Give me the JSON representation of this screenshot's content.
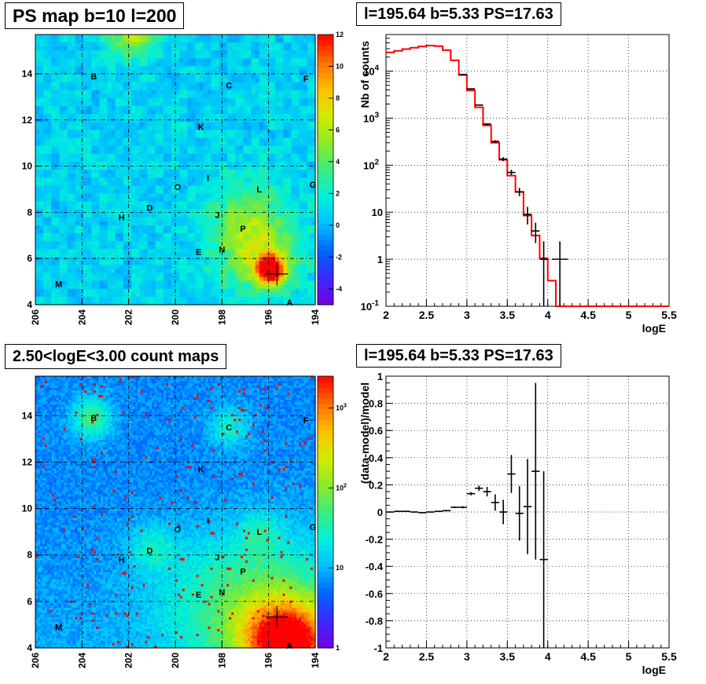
{
  "panels": [
    {
      "title": "PS map b=10 l=200"
    },
    {
      "title": "l=195.64 b=5.33 PS=17.63"
    },
    {
      "title": "2.50<logE<3.00 count maps"
    },
    {
      "title": "l=195.64 b=5.33 PS=17.63"
    }
  ],
  "chart_data": [
    {
      "type": "heatmap",
      "title": "PS map b=10 l=200",
      "xlim": [
        206,
        194
      ],
      "ylim": [
        4,
        15.7
      ],
      "x_ticks": [
        "206",
        "204",
        "202",
        "200",
        "198",
        "196",
        "194"
      ],
      "y_ticks": [
        "4",
        "6",
        "8",
        "10",
        "12",
        "14"
      ],
      "colorbar": {
        "scale": "linear",
        "range": [
          -5,
          12
        ],
        "ticks": [
          "12",
          "10",
          "8",
          "6",
          "4",
          "2",
          "0",
          "-2",
          "-4"
        ]
      },
      "source_labels": [
        {
          "name": "B",
          "l": 203.5,
          "b": 13.9
        },
        {
          "name": "C",
          "l": 197.7,
          "b": 13.5
        },
        {
          "name": "F",
          "l": 194.4,
          "b": 13.8
        },
        {
          "name": "K",
          "l": 198.9,
          "b": 11.7
        },
        {
          "name": "O",
          "l": 199.9,
          "b": 9.1
        },
        {
          "name": "I",
          "l": 198.6,
          "b": 9.5
        },
        {
          "name": "L",
          "l": 196.4,
          "b": 9.0
        },
        {
          "name": "G",
          "l": 194.1,
          "b": 9.2
        },
        {
          "name": "D",
          "l": 201.1,
          "b": 8.2
        },
        {
          "name": "H",
          "l": 202.3,
          "b": 7.8
        },
        {
          "name": "J",
          "l": 198.2,
          "b": 7.9
        },
        {
          "name": "P",
          "l": 197.1,
          "b": 7.3
        },
        {
          "name": "E",
          "l": 199.0,
          "b": 6.3
        },
        {
          "name": "N",
          "l": 198.0,
          "b": 6.4
        },
        {
          "name": "M",
          "l": 205.0,
          "b": 4.9
        },
        {
          "name": "A",
          "l": 195.1,
          "b": 4.1
        }
      ],
      "marker": {
        "l": 195.64,
        "b": 5.33
      }
    },
    {
      "type": "line",
      "title": "l=195.64 b=5.33 PS=17.63",
      "xlabel": "logE",
      "ylabel": "Nb of counts",
      "xlim": [
        2,
        5.5
      ],
      "ylim": [
        0.1,
        60000
      ],
      "yscale": "log",
      "grid": true,
      "x_ticks": [
        "2",
        "2.5",
        "3",
        "3.5",
        "4",
        "4.5",
        "5",
        "5.5"
      ],
      "y_ticks": [
        {
          "v": 0.1,
          "m": "10",
          "e": "-1"
        },
        {
          "v": 1,
          "m": "1",
          "e": ""
        },
        {
          "v": 10,
          "m": "10",
          "e": ""
        },
        {
          "v": 100,
          "m": "10",
          "e": "2"
        },
        {
          "v": 1000,
          "m": "10",
          "e": "3"
        },
        {
          "v": 10000,
          "m": "10",
          "e": "4"
        }
      ],
      "model_bins": [
        2.0,
        2.1,
        2.2,
        2.3,
        2.4,
        2.5,
        2.6,
        2.7,
        2.8,
        2.9,
        3.0,
        3.1,
        3.2,
        3.3,
        3.4,
        3.5,
        3.6,
        3.7,
        3.8,
        3.9,
        4.0,
        4.1,
        4.2,
        4.3,
        5.5
      ],
      "model_values": [
        25000,
        27000,
        29500,
        31500,
        33500,
        35000,
        34000,
        28000,
        17000,
        8300,
        3900,
        1700,
        700,
        300,
        130,
        60,
        27,
        8.5,
        3.2,
        1.05,
        0.35,
        0.1,
        0.1,
        0.1
      ],
      "data_points": [
        {
          "x": 2.95,
          "y": 8500,
          "xerr": 0.05,
          "ylo": 8300,
          "yhi": 8700
        },
        {
          "x": 3.05,
          "y": 4200,
          "xerr": 0.05,
          "ylo": 4100,
          "yhi": 4300
        },
        {
          "x": 3.15,
          "y": 1900,
          "xerr": 0.05,
          "ylo": 1850,
          "yhi": 1950
        },
        {
          "x": 3.25,
          "y": 750,
          "xerr": 0.05,
          "ylo": 720,
          "yhi": 780
        },
        {
          "x": 3.35,
          "y": 320,
          "xerr": 0.05,
          "ylo": 300,
          "yhi": 340
        },
        {
          "x": 3.45,
          "y": 135,
          "xerr": 0.05,
          "ylo": 122,
          "yhi": 148
        },
        {
          "x": 3.55,
          "y": 70,
          "xerr": 0.05,
          "ylo": 62,
          "yhi": 80
        },
        {
          "x": 3.65,
          "y": 27,
          "xerr": 0.05,
          "ylo": 22,
          "yhi": 33
        },
        {
          "x": 3.75,
          "y": 9,
          "xerr": 0.05,
          "ylo": 5.5,
          "yhi": 13
        },
        {
          "x": 3.85,
          "y": 4,
          "xerr": 0.05,
          "ylo": 2.2,
          "yhi": 6
        },
        {
          "x": 3.95,
          "y": 1,
          "xerr": 0.05,
          "ylo": 0.1,
          "yhi": 2.4
        },
        {
          "x": 4.15,
          "y": 1,
          "xerr": 0.1,
          "ylo": 0.1,
          "yhi": 2.4
        }
      ]
    },
    {
      "type": "heatmap",
      "title": "2.50<logE<3.00 count maps",
      "xlim": [
        206,
        194
      ],
      "ylim": [
        4,
        15.7
      ],
      "x_ticks": [
        "206",
        "204",
        "202",
        "200",
        "198",
        "196",
        "194"
      ],
      "y_ticks": [
        "4",
        "6",
        "8",
        "10",
        "12",
        "14"
      ],
      "colorbar": {
        "scale": "log",
        "range": [
          1,
          2500
        ],
        "ticks": [
          {
            "v": 1,
            "m": "1",
            "e": ""
          },
          {
            "v": 10,
            "m": "10",
            "e": ""
          },
          {
            "v": 100,
            "m": "10",
            "e": "2"
          },
          {
            "v": 1000,
            "m": "10",
            "e": "3"
          }
        ]
      },
      "source_labels": [
        {
          "name": "B",
          "l": 203.5,
          "b": 13.9
        },
        {
          "name": "C",
          "l": 197.7,
          "b": 13.5
        },
        {
          "name": "F",
          "l": 194.4,
          "b": 13.8
        },
        {
          "name": "K",
          "l": 198.9,
          "b": 11.7
        },
        {
          "name": "O",
          "l": 199.9,
          "b": 9.1
        },
        {
          "name": "I",
          "l": 198.6,
          "b": 9.5
        },
        {
          "name": "L",
          "l": 196.4,
          "b": 9.0
        },
        {
          "name": "G",
          "l": 194.1,
          "b": 9.2
        },
        {
          "name": "D",
          "l": 201.1,
          "b": 8.2
        },
        {
          "name": "H",
          "l": 202.3,
          "b": 7.8
        },
        {
          "name": "J",
          "l": 198.2,
          "b": 7.9
        },
        {
          "name": "P",
          "l": 197.1,
          "b": 7.3
        },
        {
          "name": "E",
          "l": 199.0,
          "b": 6.3
        },
        {
          "name": "N",
          "l": 198.0,
          "b": 6.4
        },
        {
          "name": "M",
          "l": 205.0,
          "b": 4.9
        },
        {
          "name": "A",
          "l": 195.1,
          "b": 4.1
        }
      ],
      "marker": {
        "l": 195.64,
        "b": 5.33
      }
    },
    {
      "type": "scatter",
      "title": "l=195.64 b=5.33 PS=17.63",
      "xlabel": "logE",
      "ylabel": "(data-model)/model",
      "xlim": [
        2,
        5.5
      ],
      "ylim": [
        -1,
        1
      ],
      "grid": true,
      "x_ticks": [
        "2",
        "2.5",
        "3",
        "3.5",
        "4",
        "4.5",
        "5",
        "5.5"
      ],
      "y_ticks": [
        "-1",
        "-0.8",
        "-0.6",
        "-0.4",
        "-0.2",
        "0",
        "0.2",
        "0.4",
        "0.6",
        "0.8",
        "1"
      ],
      "points": [
        {
          "x": 2.05,
          "y": 0.0,
          "xerr": 0.05,
          "yerr": 0.004
        },
        {
          "x": 2.15,
          "y": 0.005,
          "xerr": 0.05,
          "yerr": 0.004
        },
        {
          "x": 2.25,
          "y": 0.005,
          "xerr": 0.05,
          "yerr": 0.004
        },
        {
          "x": 2.35,
          "y": 0.0,
          "xerr": 0.05,
          "yerr": 0.004
        },
        {
          "x": 2.45,
          "y": -0.005,
          "xerr": 0.05,
          "yerr": 0.004
        },
        {
          "x": 2.55,
          "y": 0.0,
          "xerr": 0.05,
          "yerr": 0.004
        },
        {
          "x": 2.65,
          "y": 0.005,
          "xerr": 0.05,
          "yerr": 0.004
        },
        {
          "x": 2.75,
          "y": 0.01,
          "xerr": 0.05,
          "yerr": 0.005
        },
        {
          "x": 2.85,
          "y": 0.035,
          "xerr": 0.05,
          "yerr": 0.006
        },
        {
          "x": 2.95,
          "y": 0.035,
          "xerr": 0.05,
          "yerr": 0.008
        },
        {
          "x": 3.05,
          "y": 0.135,
          "xerr": 0.05,
          "yerr": 0.012
        },
        {
          "x": 3.15,
          "y": 0.175,
          "xerr": 0.05,
          "yerr": 0.02
        },
        {
          "x": 3.25,
          "y": 0.15,
          "xerr": 0.05,
          "yerr": 0.035
        },
        {
          "x": 3.35,
          "y": 0.07,
          "xerr": 0.05,
          "yerr": 0.06
        },
        {
          "x": 3.45,
          "y": 0.0,
          "xerr": 0.05,
          "yerr": 0.09
        },
        {
          "x": 3.55,
          "y": 0.28,
          "xerr": 0.05,
          "yerr": 0.14
        },
        {
          "x": 3.65,
          "y": -0.01,
          "xerr": 0.05,
          "yerr": 0.2
        },
        {
          "x": 3.75,
          "y": 0.04,
          "xerr": 0.05,
          "yerr": 0.35
        },
        {
          "x": 3.85,
          "y": 0.3,
          "xerr": 0.05,
          "yerr": 0.65
        },
        {
          "x": 3.95,
          "y": -0.35,
          "xerr": 0.05,
          "yerr": 0.65
        }
      ]
    }
  ],
  "colors": {
    "model_line": "#ff0000",
    "data": "#000000",
    "grid": "#000000"
  }
}
